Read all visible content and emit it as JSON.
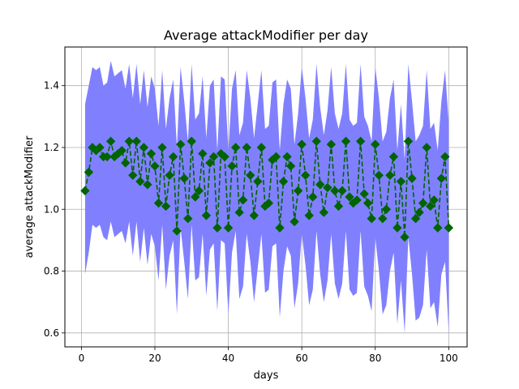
{
  "chart_data": {
    "type": "line",
    "title": "Average attackModifier per day",
    "xlabel": "days",
    "ylabel": "average attackModifier",
    "xlim": [
      -4.5,
      105
    ],
    "ylim": [
      0.555,
      1.525
    ],
    "grid": true,
    "x_ticks": [
      0,
      20,
      40,
      60,
      80,
      100
    ],
    "x_tick_labels": [
      "0",
      "20",
      "40",
      "60",
      "80",
      "100"
    ],
    "y_ticks": [
      0.6,
      0.8,
      1.0,
      1.2,
      1.4
    ],
    "y_tick_labels": [
      "0.6",
      "0.8",
      "1.0",
      "1.2",
      "1.4"
    ],
    "series": [
      {
        "style": "dashed line with diamond markers",
        "color": "#006400",
        "x": [
          1,
          2,
          3,
          4,
          5,
          6,
          7,
          8,
          9,
          10,
          11,
          12,
          13,
          14,
          15,
          16,
          17,
          18,
          19,
          20,
          21,
          22,
          23,
          24,
          25,
          26,
          27,
          28,
          29,
          30,
          31,
          32,
          33,
          34,
          35,
          36,
          37,
          38,
          39,
          40,
          41,
          42,
          43,
          44,
          45,
          46,
          47,
          48,
          49,
          50,
          51,
          52,
          53,
          54,
          55,
          56,
          57,
          58,
          59,
          60,
          61,
          62,
          63,
          64,
          65,
          66,
          67,
          68,
          69,
          70,
          71,
          72,
          73,
          74,
          75,
          76,
          77,
          78,
          79,
          80,
          81,
          82,
          83,
          84,
          85,
          86,
          87,
          88,
          89,
          90,
          91,
          92,
          93,
          94,
          95,
          96,
          97,
          98,
          99,
          100
        ],
        "values": [
          1.06,
          1.12,
          1.2,
          1.19,
          1.2,
          1.17,
          1.17,
          1.22,
          1.17,
          1.18,
          1.19,
          1.15,
          1.22,
          1.11,
          1.22,
          1.09,
          1.2,
          1.08,
          1.18,
          1.14,
          1.02,
          1.2,
          1.01,
          1.11,
          1.17,
          0.93,
          1.21,
          1.1,
          0.97,
          1.22,
          1.04,
          1.06,
          1.18,
          0.98,
          1.15,
          1.17,
          0.94,
          1.18,
          1.17,
          0.94,
          1.14,
          1.2,
          0.99,
          1.03,
          1.2,
          1.11,
          0.98,
          1.09,
          1.2,
          1.01,
          1.02,
          1.16,
          1.17,
          0.94,
          1.09,
          1.17,
          1.14,
          0.96,
          1.06,
          1.21,
          1.11,
          0.98,
          1.04,
          1.22,
          1.08,
          0.99,
          1.07,
          1.21,
          1.06,
          1.01,
          1.06,
          1.22,
          1.04,
          1.02,
          1.03,
          1.22,
          1.05,
          1.02,
          0.97,
          1.21,
          1.11,
          0.97,
          1.0,
          1.11,
          1.17,
          0.94,
          1.09,
          0.91,
          1.22,
          1.1,
          0.97,
          0.99,
          1.02,
          1.2,
          1.01,
          1.03,
          0.94,
          1.1,
          1.17,
          0.94
        ]
      },
      {
        "style": "filled band",
        "color": "#8080ff",
        "upper": [
          1.34,
          1.4,
          1.46,
          1.45,
          1.46,
          1.4,
          1.41,
          1.48,
          1.43,
          1.44,
          1.45,
          1.39,
          1.47,
          1.36,
          1.47,
          1.34,
          1.45,
          1.33,
          1.43,
          1.39,
          1.27,
          1.45,
          1.26,
          1.36,
          1.42,
          1.2,
          1.46,
          1.35,
          1.22,
          1.47,
          1.29,
          1.31,
          1.43,
          1.23,
          1.4,
          1.42,
          1.19,
          1.43,
          1.42,
          1.19,
          1.39,
          1.45,
          1.24,
          1.28,
          1.45,
          1.36,
          1.23,
          1.34,
          1.45,
          1.26,
          1.27,
          1.41,
          1.42,
          1.19,
          1.34,
          1.42,
          1.39,
          1.21,
          1.31,
          1.46,
          1.36,
          1.23,
          1.29,
          1.47,
          1.33,
          1.24,
          1.32,
          1.46,
          1.31,
          1.26,
          1.31,
          1.47,
          1.29,
          1.27,
          1.28,
          1.47,
          1.3,
          1.27,
          1.22,
          1.46,
          1.36,
          1.22,
          1.25,
          1.36,
          1.42,
          1.19,
          1.34,
          1.16,
          1.47,
          1.35,
          1.22,
          1.24,
          1.27,
          1.45,
          1.26,
          1.28,
          1.19,
          1.35,
          1.45,
          1.28
        ],
        "lower": [
          0.79,
          0.86,
          0.95,
          0.94,
          0.95,
          0.91,
          0.9,
          0.96,
          0.91,
          0.92,
          0.93,
          0.89,
          0.96,
          0.85,
          0.96,
          0.83,
          0.94,
          0.82,
          0.92,
          0.88,
          0.77,
          0.95,
          0.74,
          0.85,
          0.9,
          0.66,
          0.94,
          0.83,
          0.71,
          0.95,
          0.77,
          0.78,
          0.92,
          0.72,
          0.87,
          0.89,
          0.67,
          0.9,
          0.89,
          0.66,
          0.86,
          0.93,
          0.71,
          0.75,
          0.92,
          0.83,
          0.7,
          0.81,
          0.92,
          0.73,
          0.74,
          0.88,
          0.89,
          0.65,
          0.8,
          0.88,
          0.85,
          0.68,
          0.76,
          0.92,
          0.82,
          0.69,
          0.74,
          0.93,
          0.79,
          0.7,
          0.77,
          0.92,
          0.76,
          0.71,
          0.76,
          0.93,
          0.74,
          0.72,
          0.73,
          0.93,
          0.75,
          0.72,
          0.67,
          0.91,
          0.8,
          0.66,
          0.69,
          0.8,
          0.86,
          0.63,
          0.77,
          0.6,
          0.91,
          0.79,
          0.64,
          0.65,
          0.69,
          0.87,
          0.68,
          0.7,
          0.62,
          0.79,
          0.83,
          0.6
        ]
      }
    ]
  }
}
